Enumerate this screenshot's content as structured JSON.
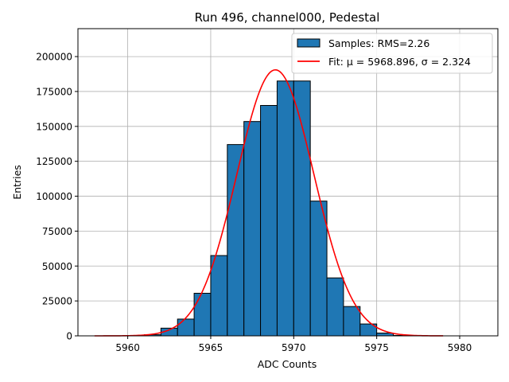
{
  "chart_data": {
    "type": "bar",
    "title": "Run 496, channel000, Pedestal",
    "xlabel": "ADC Counts",
    "ylabel": "Entries",
    "xlim": [
      5957,
      5982.3
    ],
    "ylim": [
      0,
      220000
    ],
    "xticks": [
      5960,
      5965,
      5970,
      5975,
      5980
    ],
    "yticks": [
      0,
      25000,
      50000,
      75000,
      100000,
      125000,
      150000,
      175000,
      200000
    ],
    "grid": true,
    "legend_position": "top-right",
    "bins": {
      "edges": [
        5961,
        5962,
        5963,
        5964,
        5965,
        5966,
        5967,
        5968,
        5969,
        5970,
        5971,
        5972,
        5973,
        5974,
        5975,
        5976,
        5977
      ],
      "counts": [
        800,
        5500,
        12000,
        30500,
        57500,
        137000,
        153500,
        165000,
        182500,
        182500,
        96500,
        41500,
        21000,
        8500,
        2000,
        300
      ]
    },
    "fit": {
      "mu": 5968.896,
      "sigma": 2.324,
      "amplitude": 190500,
      "x_range": [
        5958,
        5979
      ]
    },
    "legend": [
      {
        "label": "Samples: RMS=2.26",
        "kind": "patch",
        "color": "#1f77b4"
      },
      {
        "label": "Fit: μ = 5968.896, σ = 2.324",
        "kind": "line",
        "color": "#ff0000"
      }
    ],
    "colors": {
      "bar_fill": "#1f77b4",
      "bar_edge": "#000000",
      "fit_line": "#ff0000",
      "grid": "#b0b0b0"
    }
  }
}
